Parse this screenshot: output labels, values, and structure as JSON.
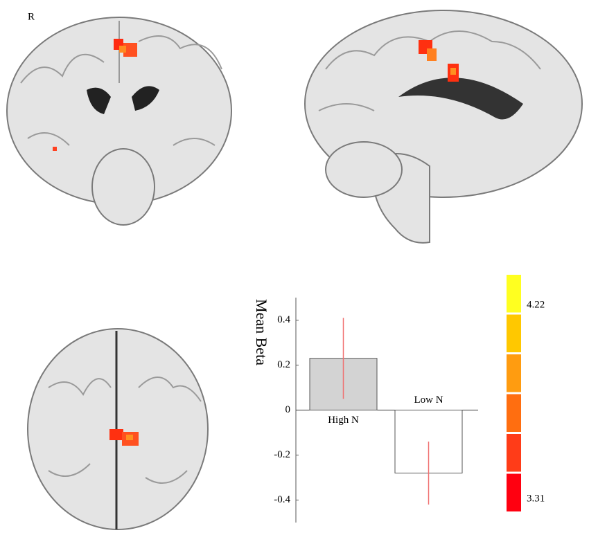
{
  "chart_data": {
    "type": "bar",
    "ylabel": "Mean Beta",
    "categories": [
      "High N",
      "Low N"
    ],
    "values": [
      0.23,
      -0.28
    ],
    "errors": [
      0.18,
      0.14
    ],
    "colors": [
      "#d3d3d3",
      "#ffffff"
    ],
    "error_color": "#f07070",
    "ylim": [
      -0.5,
      0.5
    ],
    "yticks": [
      0.4,
      0.2,
      0,
      -0.2,
      -0.4
    ]
  },
  "colorbar": {
    "colors": [
      "#ffff20",
      "#ffc800",
      "#ff9c10",
      "#ff6e10",
      "#ff3c18",
      "#ff0010"
    ],
    "labels": [
      "4.22",
      "3.31"
    ]
  },
  "annotations": [
    "R"
  ]
}
